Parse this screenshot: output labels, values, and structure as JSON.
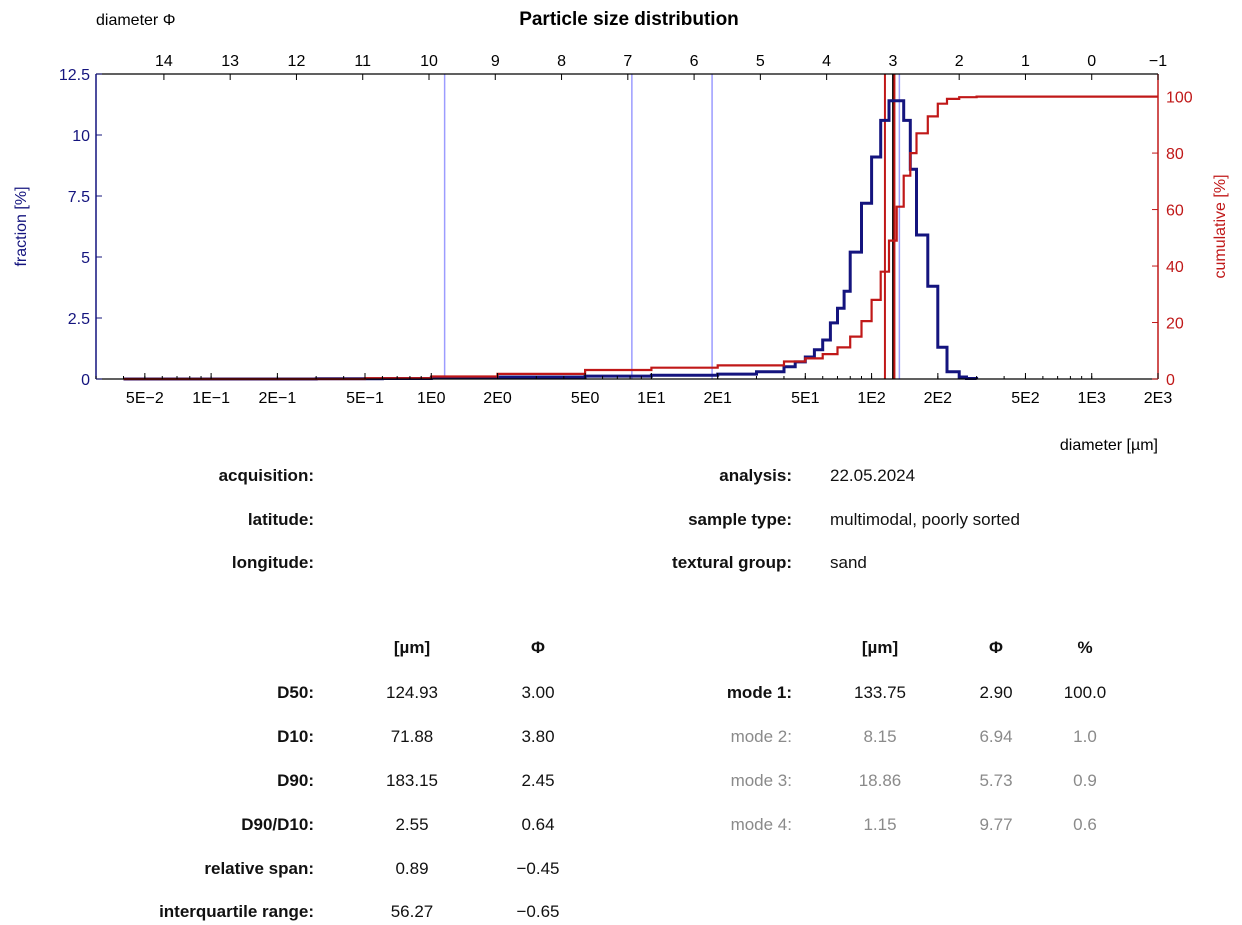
{
  "chart_data": {
    "type": "line",
    "title": "Particle size distribution",
    "top_axis_label": "diameter Φ",
    "top_ticks": [
      "14",
      "13",
      "12",
      "11",
      "10",
      "9",
      "8",
      "7",
      "6",
      "5",
      "4",
      "3",
      "2",
      "1",
      "0",
      "−1"
    ],
    "top_tick_values": [
      14,
      13,
      12,
      11,
      10,
      9,
      8,
      7,
      6,
      5,
      4,
      3,
      2,
      1,
      0,
      -1
    ],
    "xlabel": "diameter [µm]",
    "x_scale": "log",
    "xlim": [
      0.03,
      2000
    ],
    "x_ticks": [
      "5E−2",
      "1E−1",
      "2E−1",
      "5E−1",
      "1E0",
      "2E0",
      "5E0",
      "1E1",
      "2E1",
      "5E1",
      "1E2",
      "2E2",
      "5E2",
      "1E3",
      "2E3"
    ],
    "x_tick_values": [
      0.05,
      0.1,
      0.2,
      0.5,
      1,
      2,
      5,
      10,
      20,
      50,
      100,
      200,
      500,
      1000,
      2000
    ],
    "ylabel_left": "fraction [%]",
    "ylim_left": [
      0,
      12.5
    ],
    "y_ticks_left": [
      "0",
      "2.5",
      "5",
      "7.5",
      "10",
      "12.5"
    ],
    "y_tick_values_left": [
      0,
      2.5,
      5,
      7.5,
      10,
      12.5
    ],
    "ylabel_right": "cumulative [%]",
    "ylim_right": [
      0,
      108
    ],
    "y_ticks_right": [
      "0",
      "20",
      "40",
      "60",
      "80",
      "100"
    ],
    "y_tick_values_right": [
      0,
      20,
      40,
      60,
      80,
      100
    ],
    "grid": false,
    "colors": {
      "fraction": "#14147e",
      "cumulative": "#c01818",
      "mode_lines": "#9c9cff",
      "d50_line": "#000000"
    },
    "series": [
      {
        "axis": "left",
        "style": "step",
        "x": [
          0.04,
          0.3,
          0.6,
          1.0,
          2.0,
          5.0,
          10,
          20,
          30,
          40,
          45,
          50,
          55,
          60,
          65,
          70,
          75,
          80,
          90,
          100,
          110,
          120,
          130,
          140,
          150,
          160,
          180,
          200,
          220,
          250,
          270,
          300
        ],
        "values": [
          0,
          0.01,
          0.02,
          0.05,
          0.08,
          0.12,
          0.15,
          0.2,
          0.3,
          0.5,
          0.7,
          0.9,
          1.2,
          1.6,
          2.3,
          2.9,
          3.6,
          5.2,
          7.2,
          9.1,
          10.6,
          11.4,
          11.4,
          10.6,
          8.6,
          5.9,
          3.8,
          1.3,
          0.3,
          0.08,
          0.02,
          0
        ]
      },
      {
        "axis": "right",
        "style": "step",
        "x": [
          0.04,
          0.5,
          1,
          2,
          5,
          10,
          20,
          40,
          50,
          60,
          70,
          80,
          90,
          100,
          110,
          120,
          130,
          140,
          150,
          160,
          180,
          200,
          220,
          250,
          300,
          2000
        ],
        "values": [
          0,
          0.3,
          0.9,
          1.8,
          3.2,
          4.0,
          4.8,
          6.2,
          7.3,
          8.8,
          11.2,
          15.0,
          20.5,
          28.0,
          38.0,
          49.0,
          61.0,
          72.0,
          80.0,
          87.0,
          93.0,
          97.5,
          99.2,
          99.8,
          100,
          100
        ]
      }
    ],
    "vlines": [
      {
        "x": 1.15,
        "role": "mode"
      },
      {
        "x": 8.15,
        "role": "mode"
      },
      {
        "x": 18.86,
        "role": "mode"
      },
      {
        "x": 133.75,
        "role": "mode"
      },
      {
        "x": 124.93,
        "role": "d50"
      },
      {
        "x": 115,
        "role": "cumulative"
      },
      {
        "x": 127,
        "role": "cumulative"
      }
    ]
  },
  "info": {
    "acquisition_label": "acquisition:",
    "latitude_label": "latitude:",
    "longitude_label": "longitude:",
    "analysis_label": "analysis:",
    "analysis_value": "22.05.2024",
    "sample_type_label": "sample type:",
    "sample_type_value": "multimodal, poorly sorted",
    "textural_group_label": "textural group:",
    "textural_group_value": "sand"
  },
  "stats": {
    "unit_um": "[µm]",
    "unit_phi": "Φ",
    "rows": [
      {
        "label": "D50:",
        "um": "124.93",
        "phi": "3.00"
      },
      {
        "label": "D10:",
        "um": "71.88",
        "phi": "3.80"
      },
      {
        "label": "D90:",
        "um": "183.15",
        "phi": "2.45"
      },
      {
        "label": "D90/D10:",
        "um": "2.55",
        "phi": "0.64"
      },
      {
        "label": "relative span:",
        "um": "0.89",
        "phi": "−0.45"
      },
      {
        "label": "interquartile range:",
        "um": "56.27",
        "phi": "−0.65"
      }
    ]
  },
  "modes": {
    "unit_um": "[µm]",
    "unit_phi": "Φ",
    "unit_pct": "%",
    "rows": [
      {
        "label": "mode 1:",
        "um": "133.75",
        "phi": "2.90",
        "pct": "100.0"
      },
      {
        "label": "mode 2:",
        "um": "8.15",
        "phi": "6.94",
        "pct": "1.0"
      },
      {
        "label": "mode 3:",
        "um": "18.86",
        "phi": "5.73",
        "pct": "0.9"
      },
      {
        "label": "mode 4:",
        "um": "1.15",
        "phi": "9.77",
        "pct": "0.6"
      }
    ]
  }
}
